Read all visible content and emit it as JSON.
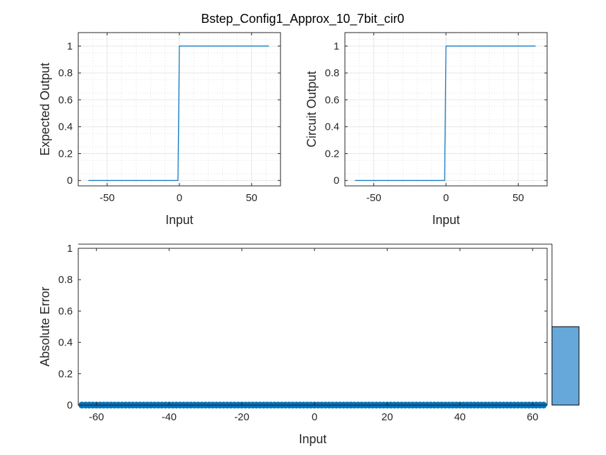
{
  "figure_title": "Bstep_Config1_Approx_10_7bit_cir0",
  "colors": {
    "line": "#0072BD",
    "marker": "#0072BD",
    "hist": "#66A8D9",
    "axis": "#262626",
    "grid": "#E6E6E6"
  },
  "chart_data": [
    {
      "type": "line",
      "xlabel": "Input",
      "ylabel": "Expected Output",
      "xlim": [
        -70,
        70
      ],
      "ylim": [
        -0.04,
        1.1
      ],
      "xticks": [
        -50,
        0,
        50
      ],
      "yticks": [
        0,
        0.2,
        0.4,
        0.6,
        0.8,
        1
      ],
      "grid": true,
      "x": [
        -63,
        -1,
        0,
        62
      ],
      "y": [
        0,
        0,
        1,
        1
      ]
    },
    {
      "type": "line",
      "xlabel": "Input",
      "ylabel": "Circuit Output",
      "xlim": [
        -70,
        70
      ],
      "ylim": [
        -0.04,
        1.1
      ],
      "xticks": [
        -50,
        0,
        50
      ],
      "yticks": [
        0,
        0.2,
        0.4,
        0.6,
        0.8,
        1
      ],
      "grid": true,
      "x": [
        -63,
        -1,
        0,
        62
      ],
      "y": [
        0,
        0,
        1,
        1
      ]
    },
    {
      "type": "scatter",
      "xlabel": "Input",
      "ylabel": "Absolute Error",
      "xlim": [
        -65,
        64
      ],
      "ylim": [
        0,
        1
      ],
      "xticks": [
        -60,
        -40,
        -20,
        0,
        20,
        40,
        60
      ],
      "yticks": [
        0,
        0.2,
        0.4,
        0.6,
        0.8,
        1
      ],
      "grid": false,
      "x_start": -64,
      "x_end": 63,
      "y_value": 0,
      "histogram": {
        "bin_edges": [
          0,
          1
        ],
        "value": 0.5
      }
    }
  ]
}
